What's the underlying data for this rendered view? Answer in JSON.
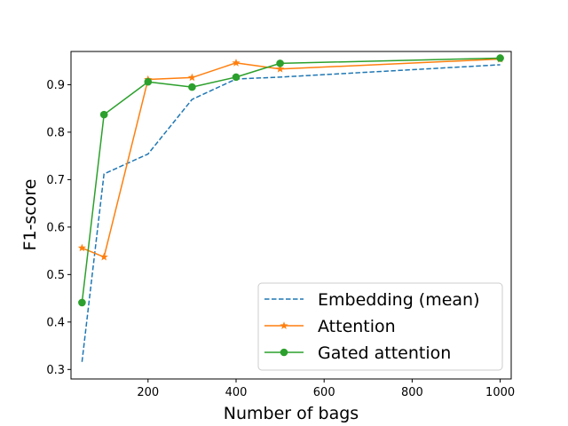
{
  "chart_data": {
    "type": "line",
    "xlabel": "Number of bags",
    "ylabel": "F1-score",
    "xlim": [
      25,
      1025
    ],
    "ylim": [
      0.28,
      0.97
    ],
    "x_ticks": [
      200,
      400,
      600,
      800,
      1000
    ],
    "y_ticks": [
      0.3,
      0.4,
      0.5,
      0.6,
      0.7,
      0.8,
      0.9
    ],
    "grid": false,
    "legend_position": "lower-right",
    "series": [
      {
        "name": "Embedding (mean)",
        "color": "#1f77b4",
        "style": "dashed",
        "marker": "none",
        "x": [
          50,
          100,
          200,
          300,
          400,
          500,
          1000
        ],
        "y": [
          0.316,
          0.712,
          0.754,
          0.869,
          0.912,
          0.916,
          0.942
        ]
      },
      {
        "name": "Attention",
        "color": "#ff7f0e",
        "style": "solid",
        "marker": "star",
        "x": [
          50,
          100,
          200,
          300,
          400,
          500,
          1000
        ],
        "y": [
          0.556,
          0.537,
          0.911,
          0.915,
          0.946,
          0.933,
          0.954
        ]
      },
      {
        "name": "Gated attention",
        "color": "#2ca02c",
        "style": "solid",
        "marker": "circle",
        "x": [
          50,
          100,
          200,
          300,
          400,
          500,
          1000
        ],
        "y": [
          0.441,
          0.837,
          0.906,
          0.895,
          0.916,
          0.945,
          0.956
        ]
      }
    ]
  }
}
